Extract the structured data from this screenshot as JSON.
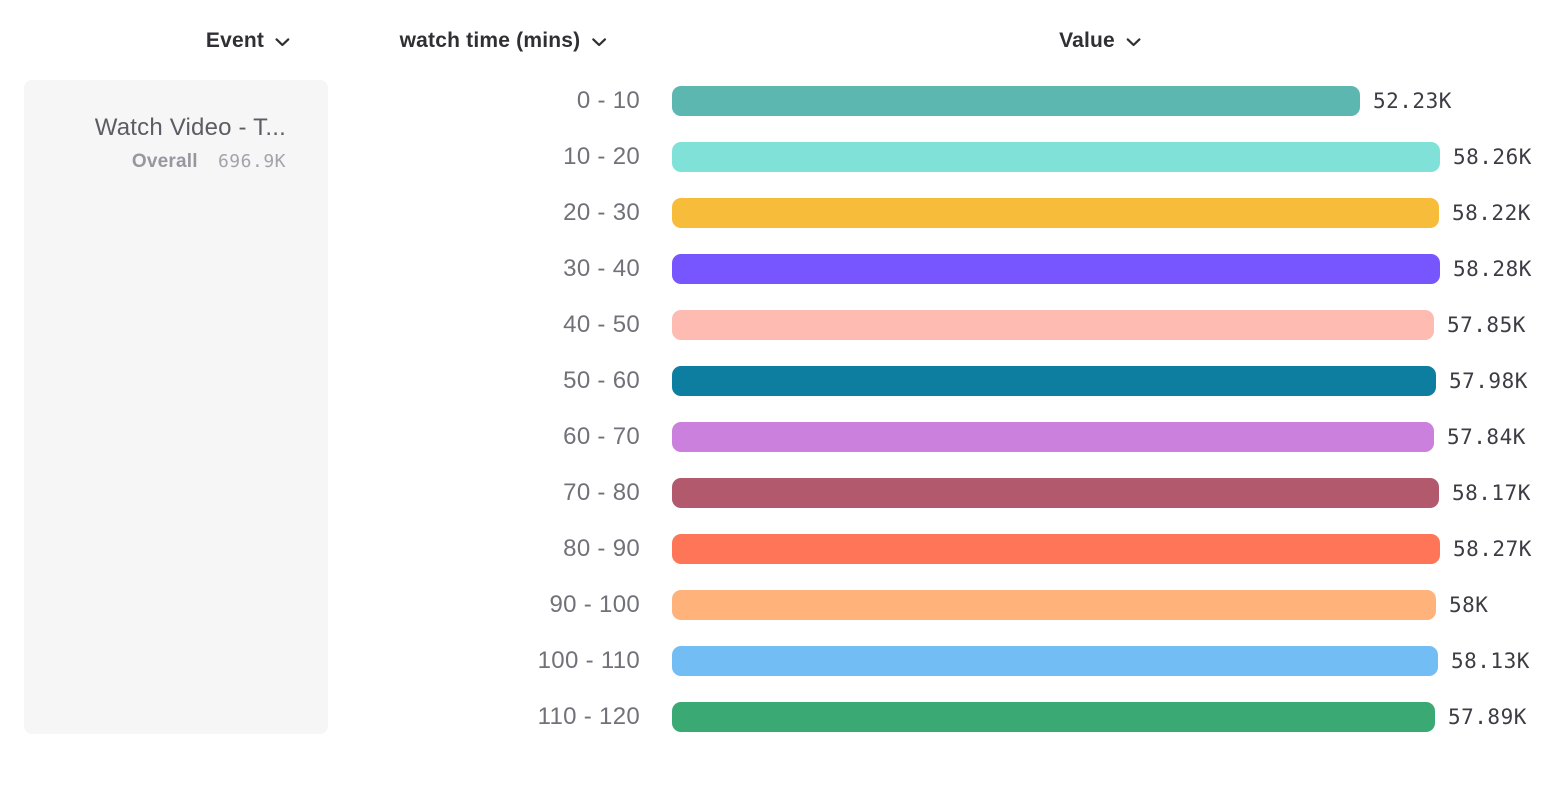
{
  "header": {
    "columns": [
      {
        "id": "event",
        "label": "Event"
      },
      {
        "id": "breakdown",
        "label": "watch time (mins)"
      },
      {
        "id": "value",
        "label": "Value"
      }
    ]
  },
  "event_card": {
    "title": "Watch Video - T...",
    "overall_label": "Overall",
    "overall_value": "696.9K"
  },
  "chart_data": {
    "type": "bar",
    "orientation": "horizontal",
    "title": "",
    "xlabel": "Value",
    "ylabel": "watch time (mins)",
    "categories": [
      "0 - 10",
      "10 - 20",
      "20 - 30",
      "30 - 40",
      "40 - 50",
      "50 - 60",
      "60 - 70",
      "70 - 80",
      "80 - 90",
      "90 - 100",
      "100 - 110",
      "110 - 120"
    ],
    "values": [
      52230,
      58260,
      58220,
      58280,
      57850,
      57980,
      57840,
      58170,
      58270,
      58000,
      58130,
      57890
    ],
    "value_labels": [
      "52.23K",
      "58.26K",
      "58.22K",
      "58.28K",
      "57.85K",
      "57.98K",
      "57.84K",
      "58.17K",
      "58.27K",
      "58K",
      "58.13K",
      "57.89K"
    ],
    "bar_colors": [
      "#5BB7AF",
      "#80E1D9",
      "#F8BC3B",
      "#7856FF",
      "#FEBBB2",
      "#0D7EA0",
      "#CA80DC",
      "#B2596E",
      "#FF7557",
      "#FFB27A",
      "#72BEF4",
      "#3BA974"
    ],
    "overall_total": "696.9K",
    "xlim": [
      0,
      58280
    ],
    "grid": false,
    "legend": "none"
  },
  "colors": {
    "background": "#ffffff",
    "panel_background": "#f6f6f7",
    "header_text": "#2f2f34",
    "bucket_label_text": "#71717a",
    "value_label_text": "#3c3c44",
    "event_title_text": "#5c5c64",
    "overall_label_text": "#97979f",
    "overall_value_text": "#a3a3ab"
  }
}
